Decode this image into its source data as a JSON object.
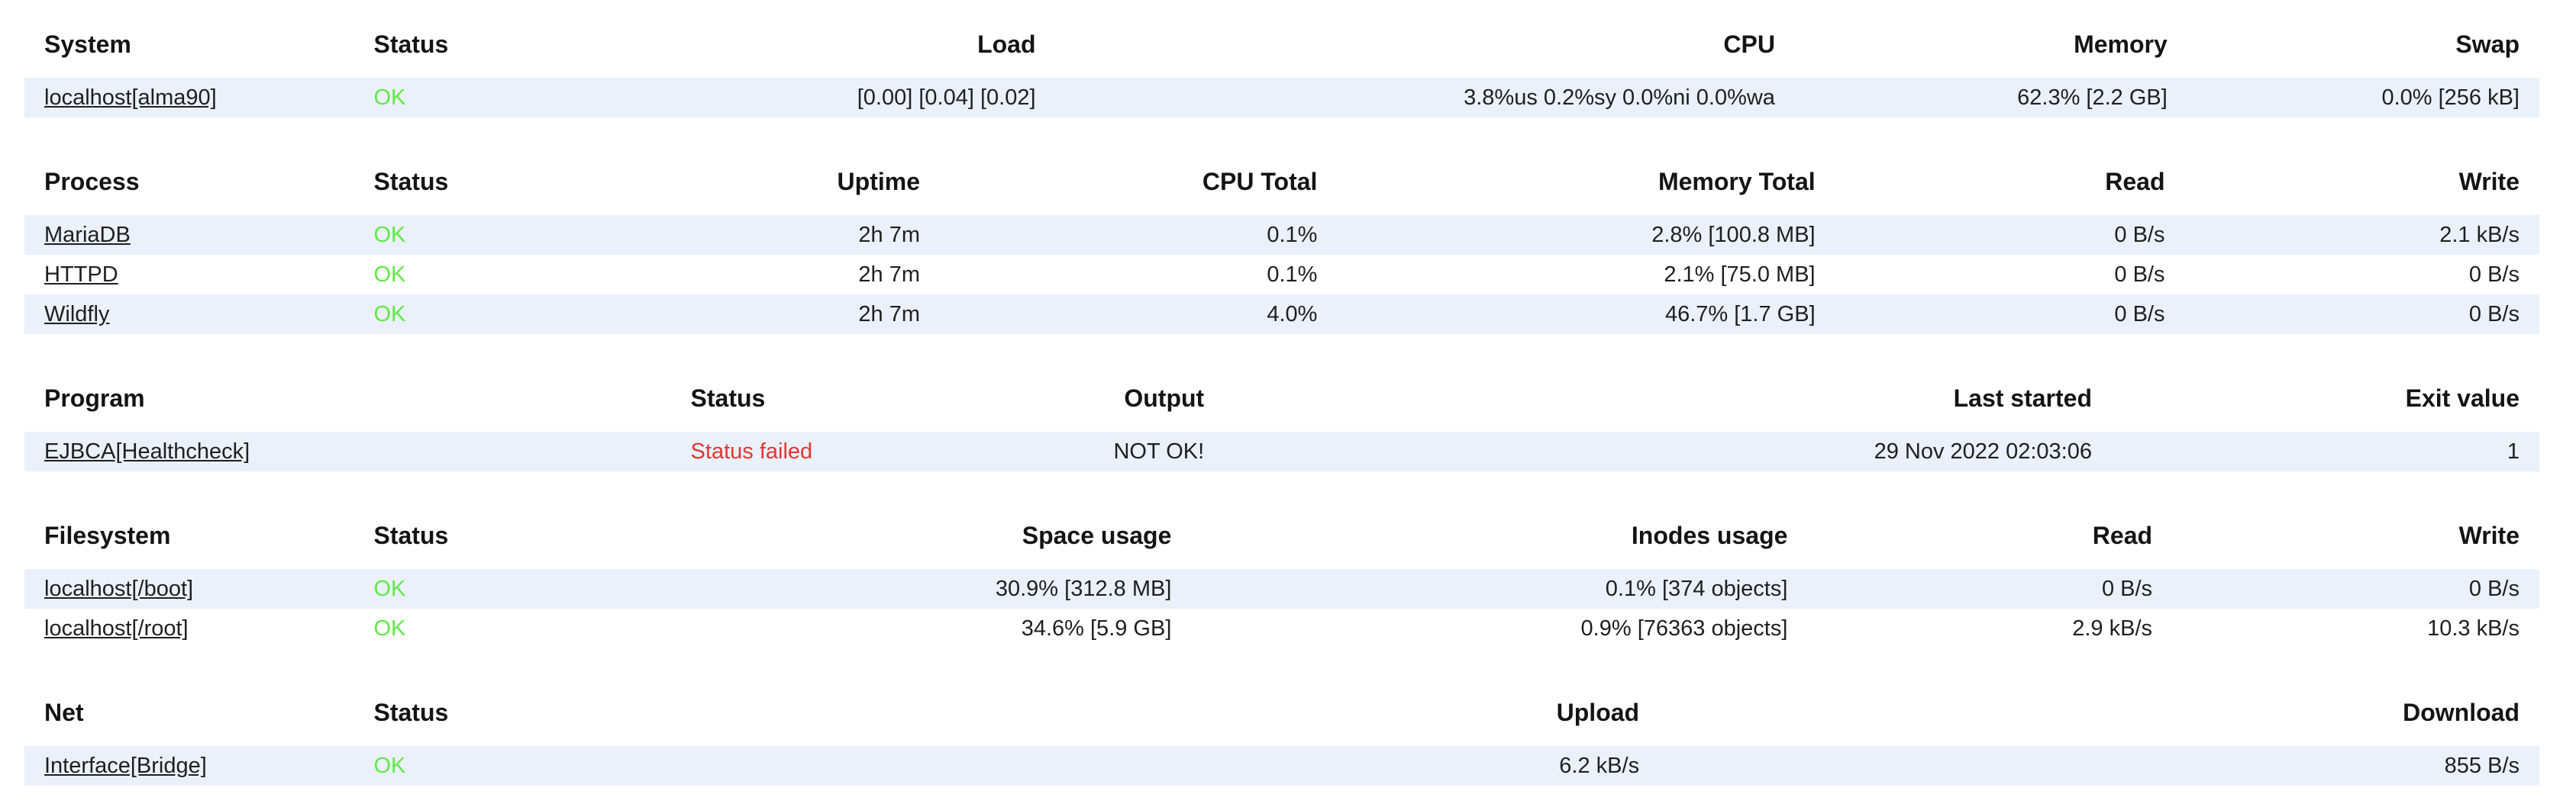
{
  "colors": {
    "ok_green": "#60e848",
    "fail_red": "#e43531",
    "row_stripe_blue": "#eaf1fb",
    "text": "#1f1f1f",
    "background": "#ffffff"
  },
  "tables": [
    {
      "name": "system",
      "columns": [
        {
          "label": "System",
          "align": "left",
          "width": "13.1%"
        },
        {
          "label": "Status",
          "align": "left",
          "width": "13.0%"
        },
        {
          "label": "Load",
          "align": "right",
          "width": "14.9%"
        },
        {
          "label": "CPU",
          "align": "right",
          "width": "29.4%"
        },
        {
          "label": "Memory",
          "align": "right",
          "width": "15.6%"
        },
        {
          "label": "Swap",
          "align": "right",
          "width": "14.0%"
        }
      ],
      "rows": [
        {
          "cells": [
            {
              "t": "localhost[alma90]",
              "type": "link"
            },
            {
              "t": "OK",
              "type": "ok"
            },
            {
              "t": "[0.00] [0.04] [0.02]",
              "type": "plain"
            },
            {
              "t": "3.8%us 0.2%sy 0.0%ni 0.0%wa",
              "type": "plain"
            },
            {
              "t": "62.3% [2.2 GB]",
              "type": "plain"
            },
            {
              "t": "0.0% [256 kB]",
              "type": "plain"
            }
          ]
        }
      ]
    },
    {
      "name": "process",
      "columns": [
        {
          "label": "Process",
          "align": "left",
          "width": "13.1%"
        },
        {
          "label": "Status",
          "align": "left",
          "width": "11.6%"
        },
        {
          "label": "Uptime",
          "align": "right",
          "width": "11.7%"
        },
        {
          "label": "CPU Total",
          "align": "right",
          "width": "15.8%"
        },
        {
          "label": "Memory Total",
          "align": "right",
          "width": "19.8%"
        },
        {
          "label": "Read",
          "align": "right",
          "width": "13.9%"
        },
        {
          "label": "Write",
          "align": "right",
          "width": "14.1%"
        }
      ],
      "rows": [
        {
          "cells": [
            {
              "t": "MariaDB",
              "type": "link"
            },
            {
              "t": "OK",
              "type": "ok"
            },
            {
              "t": "2h 7m",
              "type": "plain"
            },
            {
              "t": "0.1%",
              "type": "plain"
            },
            {
              "t": "2.8% [100.8 MB]",
              "type": "plain"
            },
            {
              "t": "0 B/s",
              "type": "plain"
            },
            {
              "t": "2.1 kB/s",
              "type": "plain"
            }
          ]
        },
        {
          "cells": [
            {
              "t": "HTTPD",
              "type": "link"
            },
            {
              "t": "OK",
              "type": "ok"
            },
            {
              "t": "2h 7m",
              "type": "plain"
            },
            {
              "t": "0.1%",
              "type": "plain"
            },
            {
              "t": "2.1% [75.0 MB]",
              "type": "plain"
            },
            {
              "t": "0 B/s",
              "type": "plain"
            },
            {
              "t": "0 B/s",
              "type": "plain"
            }
          ]
        },
        {
          "cells": [
            {
              "t": "Wildfly",
              "type": "link"
            },
            {
              "t": "OK",
              "type": "ok"
            },
            {
              "t": "2h 7m",
              "type": "plain"
            },
            {
              "t": "4.0%",
              "type": "plain"
            },
            {
              "t": "46.7% [1.7 GB]",
              "type": "plain"
            },
            {
              "t": "0 B/s",
              "type": "plain"
            },
            {
              "t": "0 B/s",
              "type": "plain"
            }
          ]
        }
      ]
    },
    {
      "name": "program",
      "columns": [
        {
          "label": "Program",
          "align": "left",
          "width": "25.7%"
        },
        {
          "label": "Status",
          "align": "left",
          "width": "11.0%"
        },
        {
          "label": "Output",
          "align": "right",
          "width": "11.0%"
        },
        {
          "label": "Last started",
          "align": "right",
          "width": "35.3%"
        },
        {
          "label": "Exit value",
          "align": "right",
          "width": "17.0%"
        }
      ],
      "rows": [
        {
          "cells": [
            {
              "t": "EJBCA[Healthcheck]",
              "type": "link"
            },
            {
              "t": "Status failed",
              "type": "fail"
            },
            {
              "t": "NOT OK!",
              "type": "plain"
            },
            {
              "t": "29 Nov 2022 02:03:06",
              "type": "plain"
            },
            {
              "t": "1",
              "type": "plain"
            }
          ]
        }
      ]
    },
    {
      "name": "filesystem",
      "columns": [
        {
          "label": "Filesystem",
          "align": "left",
          "width": "13.1%"
        },
        {
          "label": "Status",
          "align": "left",
          "width": "15.0%"
        },
        {
          "label": "Space usage",
          "align": "right",
          "width": "18.3%"
        },
        {
          "label": "Inodes usage",
          "align": "right",
          "width": "24.5%"
        },
        {
          "label": "Read",
          "align": "right",
          "width": "14.5%"
        },
        {
          "label": "Write",
          "align": "right",
          "width": "14.6%"
        }
      ],
      "rows": [
        {
          "cells": [
            {
              "t": "localhost[/boot]",
              "type": "link"
            },
            {
              "t": "OK",
              "type": "ok"
            },
            {
              "t": "30.9% [312.8 MB]",
              "type": "plain"
            },
            {
              "t": "0.1% [374 objects]",
              "type": "plain"
            },
            {
              "t": "0 B/s",
              "type": "plain"
            },
            {
              "t": "0 B/s",
              "type": "plain"
            }
          ]
        },
        {
          "cells": [
            {
              "t": "localhost[/root]",
              "type": "link"
            },
            {
              "t": "OK",
              "type": "ok"
            },
            {
              "t": "34.6% [5.9 GB]",
              "type": "plain"
            },
            {
              "t": "0.9% [76363 objects]",
              "type": "plain"
            },
            {
              "t": "2.9 kB/s",
              "type": "plain"
            },
            {
              "t": "10.3 kB/s",
              "type": "plain"
            }
          ]
        }
      ]
    },
    {
      "name": "net",
      "columns": [
        {
          "label": "Net",
          "align": "left",
          "width": "13.1%"
        },
        {
          "label": "Status",
          "align": "left",
          "width": "20.0%"
        },
        {
          "label": "Upload",
          "align": "right",
          "width": "31.9%"
        },
        {
          "label": "Download",
          "align": "right",
          "width": "35.0%"
        }
      ],
      "rows": [
        {
          "cells": [
            {
              "t": "Interface[Bridge]",
              "type": "link"
            },
            {
              "t": "OK",
              "type": "ok"
            },
            {
              "t": "6.2 kB/s",
              "type": "plain"
            },
            {
              "t": "855 B/s",
              "type": "plain"
            }
          ]
        }
      ]
    }
  ]
}
